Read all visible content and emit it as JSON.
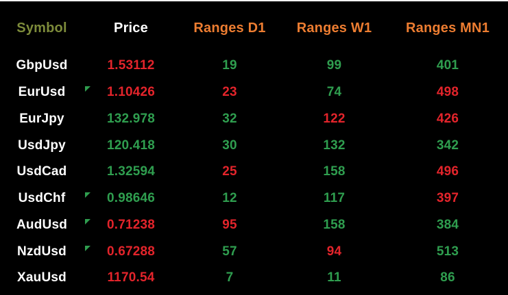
{
  "colors": {
    "background": "#000000",
    "symbol_header": "#7d8b3a",
    "price_header": "#ffffff",
    "ranges_header": "#ed7d31",
    "symbol_text": "#ffffff",
    "up": "#2f9e4f",
    "down": "#e3242b",
    "marker": "#2f9e4f"
  },
  "table": {
    "headers": [
      {
        "label": "Symbol",
        "color_key": "symbol_header"
      },
      {
        "label": "Price",
        "color_key": "price_header"
      },
      {
        "label": "Ranges D1",
        "color_key": "ranges_header"
      },
      {
        "label": "Ranges W1",
        "color_key": "ranges_header"
      },
      {
        "label": "Ranges MN1",
        "color_key": "ranges_header"
      }
    ],
    "rows": [
      {
        "symbol": "GbpUsd",
        "marker": false,
        "price": {
          "value": "1.53112",
          "trend": "down"
        },
        "d1": {
          "value": "19",
          "trend": "up"
        },
        "w1": {
          "value": "99",
          "trend": "up"
        },
        "mn1": {
          "value": "401",
          "trend": "up"
        }
      },
      {
        "symbol": "EurUsd",
        "marker": true,
        "price": {
          "value": "1.10426",
          "trend": "down"
        },
        "d1": {
          "value": "23",
          "trend": "down"
        },
        "w1": {
          "value": "74",
          "trend": "up"
        },
        "mn1": {
          "value": "498",
          "trend": "down"
        }
      },
      {
        "symbol": "EurJpy",
        "marker": false,
        "price": {
          "value": "132.978",
          "trend": "up"
        },
        "d1": {
          "value": "32",
          "trend": "up"
        },
        "w1": {
          "value": "122",
          "trend": "down"
        },
        "mn1": {
          "value": "426",
          "trend": "down"
        }
      },
      {
        "symbol": "UsdJpy",
        "marker": false,
        "price": {
          "value": "120.418",
          "trend": "up"
        },
        "d1": {
          "value": "30",
          "trend": "up"
        },
        "w1": {
          "value": "132",
          "trend": "up"
        },
        "mn1": {
          "value": "342",
          "trend": "up"
        }
      },
      {
        "symbol": "UsdCad",
        "marker": false,
        "price": {
          "value": "1.32594",
          "trend": "up"
        },
        "d1": {
          "value": "25",
          "trend": "down"
        },
        "w1": {
          "value": "158",
          "trend": "up"
        },
        "mn1": {
          "value": "496",
          "trend": "down"
        }
      },
      {
        "symbol": "UsdChf",
        "marker": true,
        "price": {
          "value": "0.98646",
          "trend": "up"
        },
        "d1": {
          "value": "12",
          "trend": "up"
        },
        "w1": {
          "value": "117",
          "trend": "up"
        },
        "mn1": {
          "value": "397",
          "trend": "down"
        }
      },
      {
        "symbol": "AudUsd",
        "marker": true,
        "price": {
          "value": "0.71238",
          "trend": "down"
        },
        "d1": {
          "value": "95",
          "trend": "down"
        },
        "w1": {
          "value": "158",
          "trend": "up"
        },
        "mn1": {
          "value": "384",
          "trend": "up"
        }
      },
      {
        "symbol": "NzdUsd",
        "marker": true,
        "price": {
          "value": "0.67288",
          "trend": "down"
        },
        "d1": {
          "value": "57",
          "trend": "up"
        },
        "w1": {
          "value": "94",
          "trend": "down"
        },
        "mn1": {
          "value": "513",
          "trend": "up"
        }
      },
      {
        "symbol": "XauUsd",
        "marker": false,
        "price": {
          "value": "1170.54",
          "trend": "down"
        },
        "d1": {
          "value": "7",
          "trend": "up"
        },
        "w1": {
          "value": "11",
          "trend": "up"
        },
        "mn1": {
          "value": "86",
          "trend": "up"
        }
      }
    ]
  }
}
